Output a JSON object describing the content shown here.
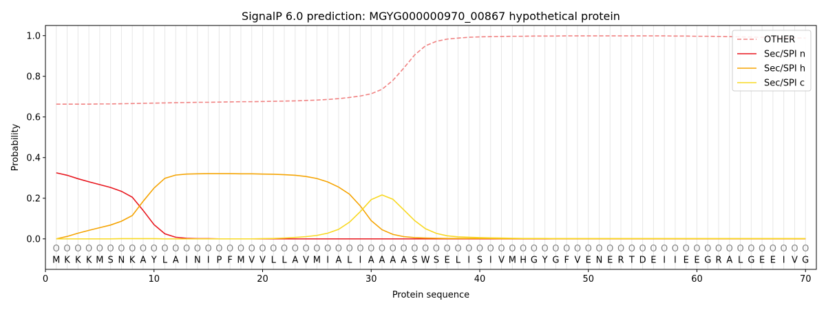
{
  "chart_data": {
    "type": "line",
    "title": "SignalP 6.0 prediction: MGYG000000970_00867 hypothetical protein",
    "xlabel": "Protein sequence",
    "ylabel": "Probability",
    "xlim": [
      0,
      71
    ],
    "ylim": [
      -0.15,
      1.05
    ],
    "xticks": [
      0,
      10,
      20,
      30,
      40,
      50,
      60,
      70
    ],
    "yticks": [
      0.0,
      0.2,
      0.4,
      0.6,
      0.8,
      1.0
    ],
    "xtick_labels": [
      "0",
      "10",
      "20",
      "30",
      "40",
      "50",
      "60",
      "70"
    ],
    "ytick_labels": [
      "0.0",
      "0.2",
      "0.4",
      "0.6",
      "0.8",
      "1.0"
    ],
    "grid": "vertical at each residue",
    "legend_position": "top-right",
    "sequence": [
      "M",
      "K",
      "K",
      "K",
      "M",
      "S",
      "N",
      "K",
      "A",
      "Y",
      "L",
      "A",
      "I",
      "N",
      "I",
      "P",
      "F",
      "M",
      "V",
      "V",
      "L",
      "L",
      "A",
      "V",
      "M",
      "I",
      "A",
      "L",
      "I",
      "A",
      "A",
      "A",
      "A",
      "S",
      "W",
      "S",
      "E",
      "L",
      "I",
      "S",
      "I",
      "V",
      "M",
      "H",
      "G",
      "Y",
      "G",
      "F",
      "V",
      "E",
      "N",
      "E",
      "R",
      "T",
      "D",
      "E",
      "I",
      "I",
      "E",
      "E",
      "G",
      "R",
      "A",
      "L",
      "G",
      "E",
      "E",
      "I",
      "V",
      "G"
    ],
    "marker_label": "O",
    "series": [
      {
        "name": "OTHER",
        "color": "#f08080",
        "dash": true,
        "values": [
          0.663,
          0.663,
          0.663,
          0.663,
          0.664,
          0.664,
          0.665,
          0.666,
          0.667,
          0.668,
          0.669,
          0.67,
          0.671,
          0.672,
          0.672,
          0.673,
          0.674,
          0.675,
          0.675,
          0.676,
          0.677,
          0.678,
          0.679,
          0.681,
          0.683,
          0.686,
          0.69,
          0.696,
          0.703,
          0.714,
          0.736,
          0.78,
          0.84,
          0.905,
          0.95,
          0.972,
          0.983,
          0.988,
          0.992,
          0.994,
          0.995,
          0.996,
          0.997,
          0.997,
          0.998,
          0.998,
          0.998,
          0.999,
          0.999,
          0.999,
          0.999,
          0.999,
          0.999,
          0.999,
          0.999,
          0.999,
          0.999,
          0.998,
          0.998,
          0.997,
          0.997,
          0.996,
          0.995,
          0.994,
          0.993,
          0.992,
          0.991,
          0.99,
          0.989,
          0.988
        ]
      },
      {
        "name": "Sec/SPI n",
        "color": "#e8141c",
        "dash": false,
        "values": [
          0.325,
          0.313,
          0.296,
          0.281,
          0.267,
          0.253,
          0.234,
          0.205,
          0.14,
          0.07,
          0.025,
          0.008,
          0.003,
          0.001,
          0.001,
          0,
          0,
          0,
          0,
          0,
          0,
          0,
          0,
          0,
          0,
          0,
          0,
          0,
          0,
          0,
          0,
          0,
          0,
          0,
          0,
          0,
          0,
          0,
          0,
          0,
          0,
          0,
          0,
          0,
          0,
          0,
          0,
          0,
          0,
          0,
          0,
          0,
          0,
          0,
          0,
          0,
          0,
          0,
          0,
          0,
          0,
          0,
          0,
          0,
          0,
          0,
          0,
          0,
          0,
          0
        ]
      },
      {
        "name": "Sec/SPI h",
        "color": "#f5a300",
        "dash": false,
        "values": [
          0.0,
          0.012,
          0.028,
          0.042,
          0.055,
          0.068,
          0.087,
          0.115,
          0.185,
          0.25,
          0.298,
          0.314,
          0.319,
          0.32,
          0.321,
          0.321,
          0.321,
          0.32,
          0.32,
          0.319,
          0.318,
          0.316,
          0.313,
          0.307,
          0.297,
          0.28,
          0.255,
          0.22,
          0.162,
          0.09,
          0.045,
          0.022,
          0.011,
          0.006,
          0.004,
          0.003,
          0.002,
          0.002,
          0.002,
          0.002,
          0.002,
          0.001,
          0.001,
          0.001,
          0.001,
          0.001,
          0.001,
          0.001,
          0.001,
          0.001,
          0.001,
          0.001,
          0.001,
          0.001,
          0.001,
          0.001,
          0.001,
          0.001,
          0.001,
          0.001,
          0.001,
          0.001,
          0.001,
          0.001,
          0.001,
          0.001,
          0.001,
          0.001,
          0.001,
          0.001
        ]
      },
      {
        "name": "Sec/SPI c",
        "color": "#f8d820",
        "dash": false,
        "values": [
          0.0,
          0.0,
          0.0,
          0.0,
          0.0,
          0.0,
          0.001,
          0.001,
          0.001,
          0.001,
          0.0,
          0.0,
          0.0,
          0.0,
          0.0,
          0.0,
          0.0,
          0.0,
          0.0,
          0.001,
          0.002,
          0.004,
          0.007,
          0.011,
          0.017,
          0.028,
          0.047,
          0.082,
          0.134,
          0.193,
          0.216,
          0.195,
          0.143,
          0.09,
          0.05,
          0.027,
          0.015,
          0.01,
          0.008,
          0.006,
          0.005,
          0.004,
          0.003,
          0.002,
          0.002,
          0.002,
          0.001,
          0.001,
          0.001,
          0.001,
          0.001,
          0.001,
          0.001,
          0.001,
          0.001,
          0.001,
          0.001,
          0.001,
          0.001,
          0.001,
          0.001,
          0.001,
          0.001,
          0.001,
          0.001,
          0.001,
          0.001,
          0.001,
          0.001,
          0.001
        ]
      }
    ]
  }
}
